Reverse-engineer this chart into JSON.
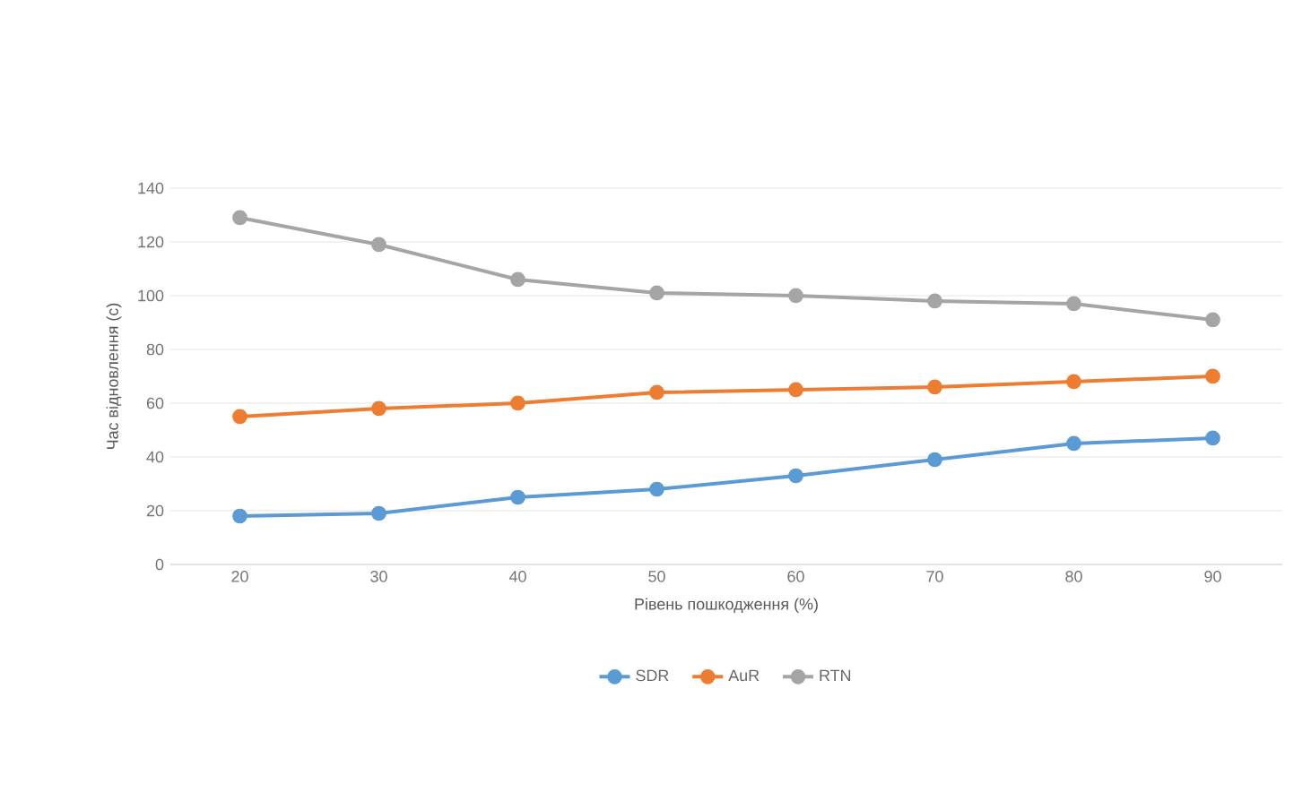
{
  "chart_data": {
    "type": "line",
    "xlabel": "Рівень пошкодження (%)",
    "ylabel": "Час відновлення (с)",
    "categories": [
      "20",
      "30",
      "40",
      "50",
      "60",
      "70",
      "80",
      "90"
    ],
    "series": [
      {
        "name": "SDR",
        "color": "#5b9bd5",
        "values": [
          18,
          19,
          25,
          28,
          33,
          39,
          45,
          47
        ]
      },
      {
        "name": "AuR",
        "color": "#ed7d31",
        "values": [
          55,
          58,
          60,
          64,
          65,
          66,
          68,
          70
        ]
      },
      {
        "name": "RTN",
        "color": "#a5a5a5",
        "values": [
          129,
          119,
          106,
          101,
          100,
          98,
          97,
          91
        ]
      }
    ],
    "ylim": [
      0,
      140
    ],
    "yticks": [
      0,
      20,
      40,
      60,
      80,
      100,
      120,
      140
    ],
    "grid": "y",
    "legend": "bottom",
    "marker": "circle",
    "line_style": "solid"
  }
}
